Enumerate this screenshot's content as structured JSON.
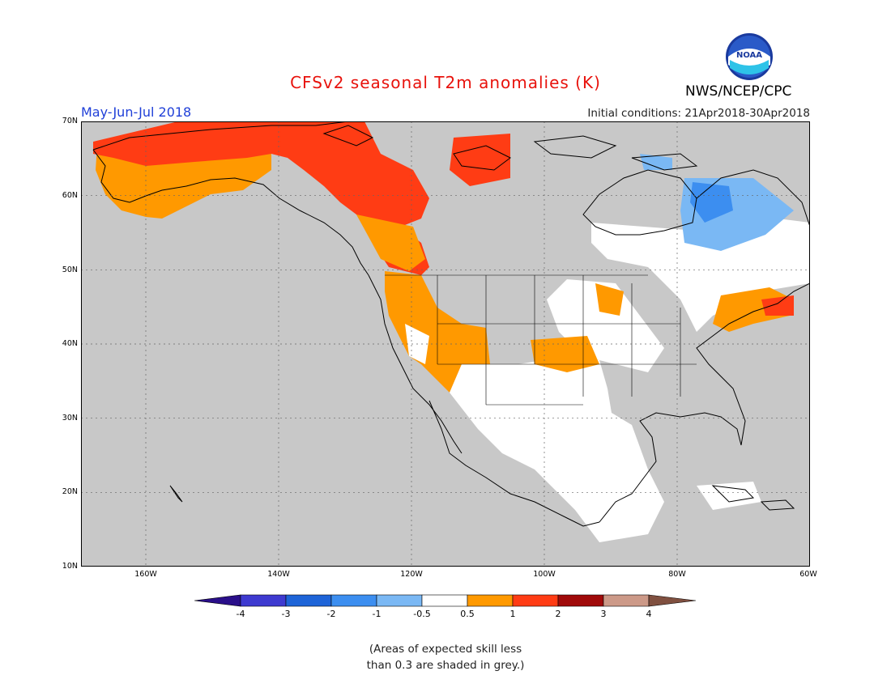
{
  "title": "CFSv2 seasonal T2m anomalies (K)",
  "period": "May-Jun-Jul 2018",
  "initial_conditions": "Initial conditions: 21Apr2018-30Apr2018",
  "agency": "NWS/NCEP/CPC",
  "logo_text": "NOAA",
  "lat_labels": [
    "70N",
    "60N",
    "50N",
    "40N",
    "30N",
    "20N",
    "10N"
  ],
  "lon_labels": [
    "160W",
    "140W",
    "120W",
    "100W",
    "80W",
    "60W"
  ],
  "colorbar": {
    "ticks": [
      "-4",
      "-3",
      "-2",
      "-1",
      "-0.5",
      "0.5",
      "1",
      "2",
      "3",
      "4"
    ],
    "colors": [
      "#2a0f8a",
      "#3e3ad0",
      "#1e64d8",
      "#3c8ef0",
      "#7ab8f4",
      "#ffffff",
      "#ff9900",
      "#ff3c14",
      "#a00a0a",
      "#cc9988",
      "#805040"
    ]
  },
  "note_line1": "(Areas of expected skill less",
  "note_line2": "than 0.3 are shaded in grey.)"
}
